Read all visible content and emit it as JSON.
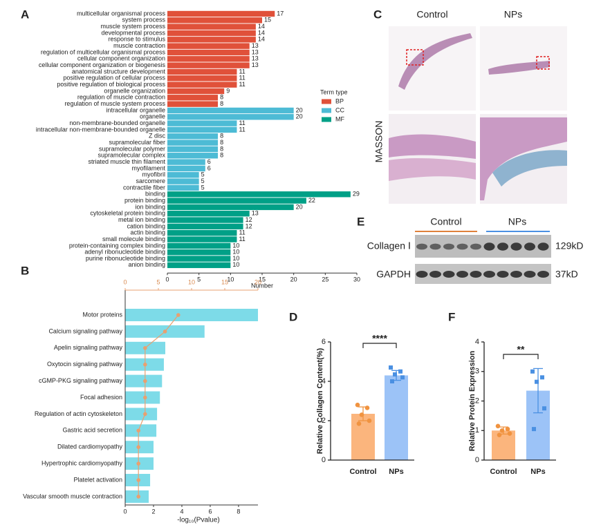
{
  "chart_data": [
    {
      "type": "bar",
      "orientation": "horizontal",
      "label": "A",
      "categories": [
        "multicellular organismal process",
        "system process",
        "muscle system process",
        "developmental process",
        "response to stimulus",
        "muscle contraction",
        "regulation of multicellular organismal process",
        "cellular component organization",
        "cellular component organization or biogenesis",
        "anatomical structure development",
        "positive regulation of cellular process",
        "positive regulation of biological process",
        "organelle organization",
        "regulation of muscle contraction",
        "regulation of muscle system process",
        "intracellular organelle",
        "organelle",
        "non-membrane-bounded organelle",
        "intracellular non-membrane-bounded organelle",
        "Z disc",
        "supramolecular fiber",
        "supramolecular polymer",
        "supramolecular complex",
        "striated muscle thin filament",
        "myofilament",
        "myofibril",
        "sarcomere",
        "contractile fiber",
        "binding",
        "protein binding",
        "ion binding",
        "cytoskeletal protein binding",
        "metal ion binding",
        "cation binding",
        "actin binding",
        "small molecule binding",
        "protein-containing complex binding",
        "adenyl ribonucleotide binding",
        "purine ribonucleotide binding",
        "anion binding"
      ],
      "series": [
        {
          "name": "BP",
          "color": "#e0513a",
          "values": [
            17,
            15,
            14,
            14,
            14,
            13,
            13,
            13,
            13,
            11,
            11,
            11,
            9,
            8,
            8,
            null,
            null,
            null,
            null,
            null,
            null,
            null,
            null,
            null,
            null,
            null,
            null,
            null,
            null,
            null,
            null,
            null,
            null,
            null,
            null,
            null,
            null,
            null,
            null,
            null
          ]
        },
        {
          "name": "CC",
          "color": "#4dbbd5",
          "values": [
            null,
            null,
            null,
            null,
            null,
            null,
            null,
            null,
            null,
            null,
            null,
            null,
            null,
            null,
            null,
            20,
            20,
            11,
            11,
            8,
            8,
            8,
            8,
            6,
            6,
            5,
            5,
            5,
            null,
            null,
            null,
            null,
            null,
            null,
            null,
            null,
            null,
            null,
            null,
            null
          ]
        },
        {
          "name": "MF",
          "color": "#00a087",
          "values": [
            null,
            null,
            null,
            null,
            null,
            null,
            null,
            null,
            null,
            null,
            null,
            null,
            null,
            null,
            null,
            null,
            null,
            null,
            null,
            null,
            null,
            null,
            null,
            null,
            null,
            null,
            null,
            null,
            29,
            22,
            20,
            13,
            12,
            12,
            11,
            11,
            10,
            10,
            10,
            10
          ]
        }
      ],
      "legend_title": "Term type",
      "xlabel": "Number",
      "xlim": [
        0,
        30
      ],
      "xticks": [
        0,
        5,
        10,
        15,
        20,
        25,
        30
      ]
    },
    {
      "type": "bar",
      "orientation": "horizontal",
      "label": "B",
      "categories": [
        "Motor proteins",
        "Calcium signaling pathway",
        "Apelin signaling pathway",
        "Oxytocin signaling pathway",
        "cGMP-PKG signaling pathway",
        "Focal adhesion",
        "Regulation of actin cytoskeleton",
        "Gastric acid secretion",
        "Dilated cardiomyopathy",
        "Hypertrophic cardiomyopathy",
        "Platelet activation",
        "Vascular smooth muscle contraction"
      ],
      "series": [
        {
          "type": "bar",
          "color": "#7ddbe8",
          "values": [
            9.37,
            5.6,
            2.83,
            2.73,
            2.6,
            2.45,
            2.25,
            2.2,
            2.0,
            2.0,
            1.76,
            1.66
          ]
        },
        {
          "type": "line",
          "color": "#e8a070",
          "axis": "x2",
          "values": [
            8,
            6,
            3,
            3,
            3,
            3,
            3,
            2,
            2,
            2,
            2,
            2
          ]
        }
      ],
      "xlabel": "-log₁₀(Pvalue)",
      "xlim": [
        0,
        9.37
      ],
      "xticks": [
        0,
        2,
        4,
        6,
        8
      ],
      "x2lim": [
        0,
        20
      ],
      "x2ticks": [
        0,
        5,
        10,
        15,
        20
      ]
    },
    {
      "type": "bar",
      "label": "D",
      "categories": [
        "Control",
        "NPs"
      ],
      "colors": [
        "#fbb57d",
        "#9cc3f7"
      ],
      "point_colors": [
        "#f09340",
        "#4a90e2"
      ],
      "values": [
        2.35,
        4.3
      ],
      "errors": [
        0.35,
        0.25
      ],
      "points": [
        [
          2.8,
          2.65,
          2.3,
          2.0,
          1.85
        ],
        [
          4.7,
          4.5,
          4.35,
          4.2,
          4.0
        ]
      ],
      "ylabel": "Relative Collagen Content(%)",
      "ylim": [
        0,
        6
      ],
      "yticks": [
        0,
        2,
        4,
        6
      ],
      "significance": "****"
    },
    {
      "type": "bar",
      "label": "F",
      "categories": [
        "Control",
        "NPs"
      ],
      "colors": [
        "#fbb57d",
        "#9cc3f7"
      ],
      "point_colors": [
        "#f09340",
        "#4a90e2"
      ],
      "values": [
        1.0,
        2.35
      ],
      "errors": [
        0.12,
        0.75
      ],
      "points": [
        [
          1.15,
          1.05,
          1.0,
          0.9,
          0.85
        ],
        [
          3.0,
          2.8,
          2.65,
          1.75,
          1.05
        ]
      ],
      "ylabel": "Relative Protein Expression",
      "ylim": [
        0,
        4
      ],
      "yticks": [
        0,
        1,
        2,
        3,
        4
      ],
      "significance": "**"
    }
  ],
  "histology": {
    "label": "C",
    "columns": [
      "Control",
      "NPs"
    ],
    "stain": "MASSON"
  },
  "western_blot": {
    "label": "E",
    "groups": [
      "Control",
      "NPs"
    ],
    "rows": [
      {
        "name": "Collagen Ⅰ",
        "size": "129kD"
      },
      {
        "name": "GAPDH",
        "size": "37kD"
      }
    ]
  }
}
